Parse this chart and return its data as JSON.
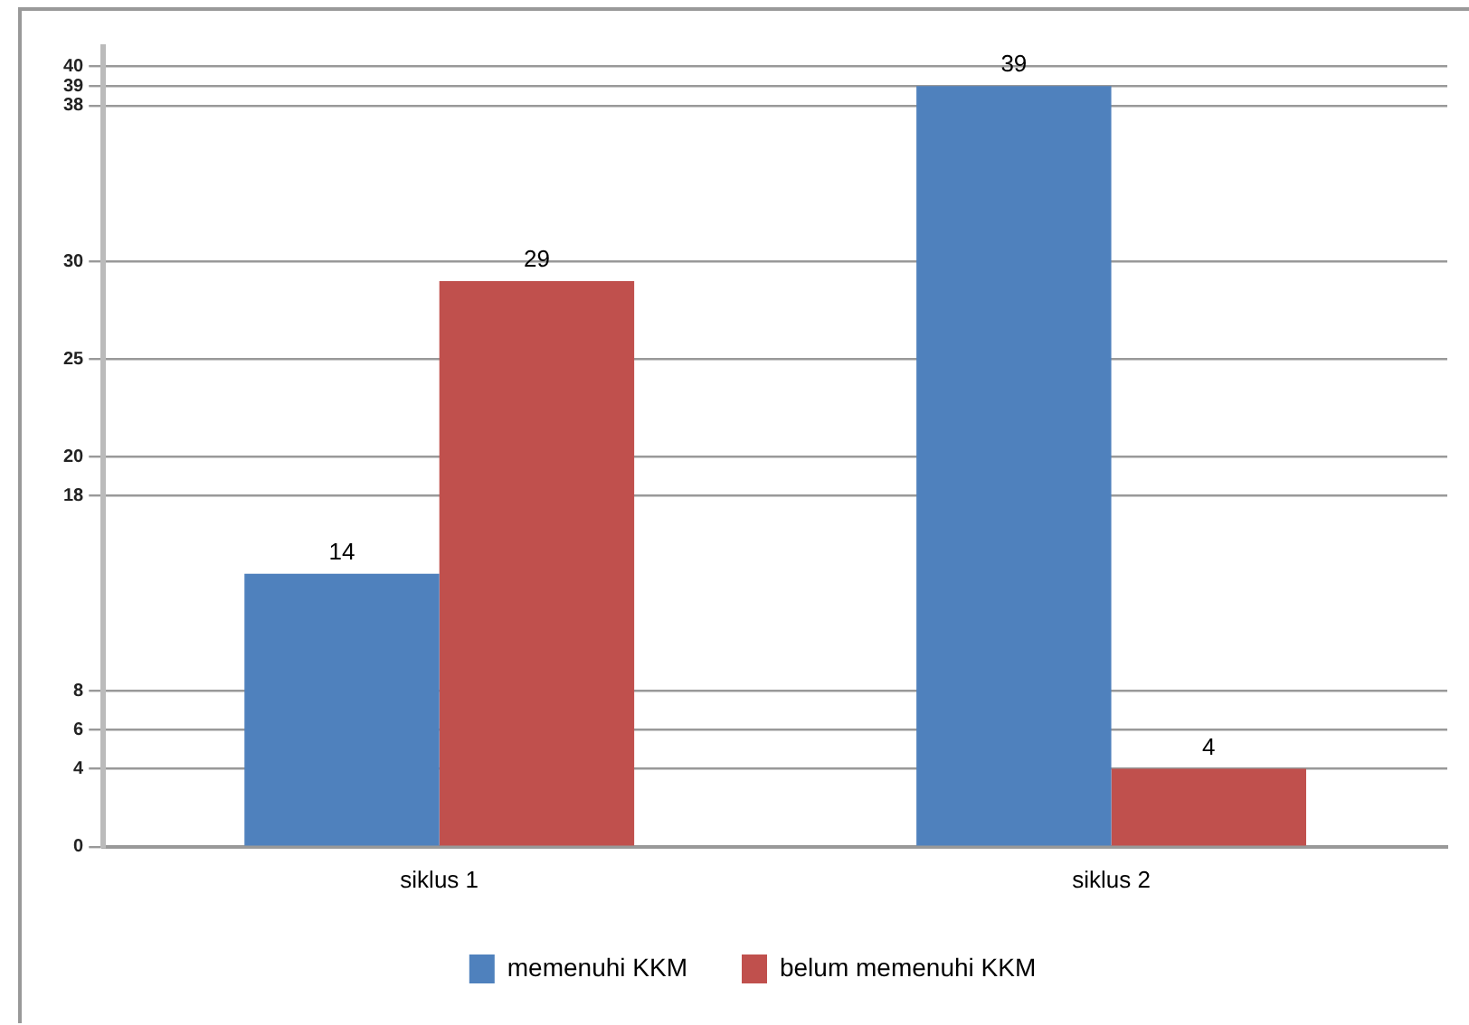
{
  "chart_data": {
    "type": "bar",
    "categories": [
      "siklus 1",
      "siklus 2"
    ],
    "series": [
      {
        "name": "memenuhi KKM",
        "color": "#4f81bd",
        "values": [
          14,
          39
        ]
      },
      {
        "name": "belum memenuhi KKM",
        "color": "#c0504d",
        "values": [
          29,
          4
        ]
      }
    ],
    "ylim": [
      0,
      41
    ],
    "yticks": [
      0,
      4,
      6,
      8,
      18,
      20,
      25,
      30,
      38,
      39,
      40
    ],
    "grid": "y",
    "legend": "bottom",
    "data_labels": true
  }
}
